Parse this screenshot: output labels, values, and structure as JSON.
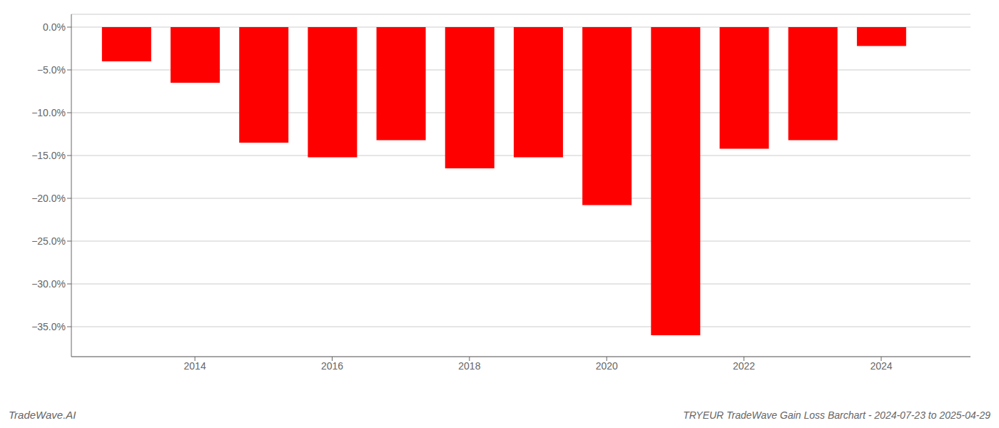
{
  "chart_data": {
    "type": "bar",
    "title": "TRYEUR TradeWave Gain Loss Barchart - 2024-07-23 to 2025-04-29",
    "annotations": [
      "TradeWave.AI"
    ],
    "x": [
      2013,
      2014,
      2015,
      2016,
      2017,
      2018,
      2019,
      2020,
      2021,
      2022,
      2023,
      2024
    ],
    "values": [
      -4.0,
      -6.5,
      -13.5,
      -15.2,
      -13.2,
      -16.5,
      -15.2,
      -20.8,
      -36.0,
      -14.2,
      -13.2,
      -2.2
    ],
    "color": "#ff0000",
    "xlim": [
      2012.2,
      2025.3
    ],
    "xticks": [
      2014,
      2016,
      2018,
      2020,
      2022,
      2024
    ],
    "ylim": [
      -38.5,
      1.5
    ],
    "yticks": [
      {
        "value": 0.0,
        "label": "0.0%"
      },
      {
        "value": -5.0,
        "label": "−5.0%"
      },
      {
        "value": -10.0,
        "label": "−10.0%"
      },
      {
        "value": -15.0,
        "label": "−15.0%"
      },
      {
        "value": -20.0,
        "label": "−20.0%"
      },
      {
        "value": -25.0,
        "label": "−25.0%"
      },
      {
        "value": -30.0,
        "label": "−30.0%"
      },
      {
        "value": -35.0,
        "label": "−35.0%"
      }
    ],
    "grid": true
  }
}
